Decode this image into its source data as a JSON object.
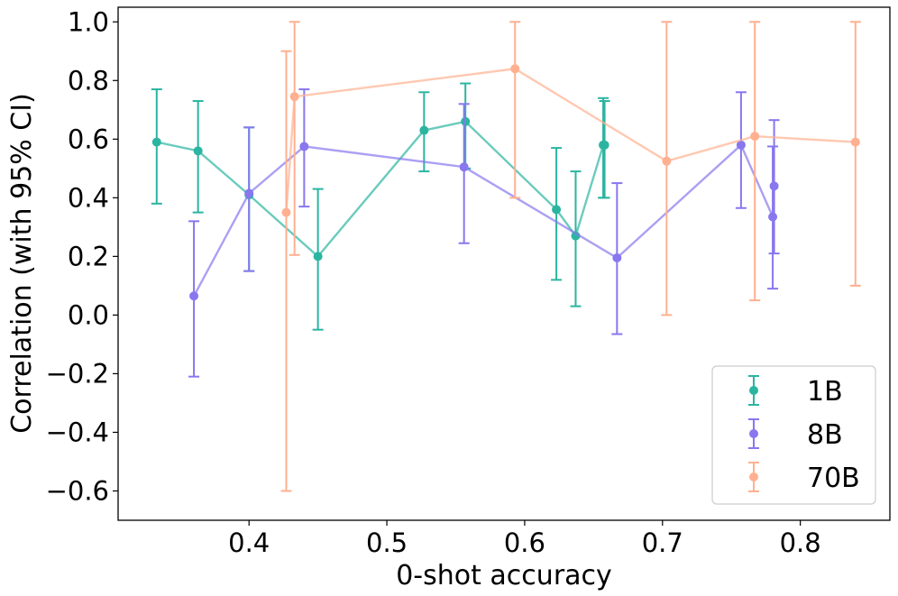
{
  "chart_data": {
    "type": "line",
    "title": "",
    "xlabel": "0-shot accuracy",
    "ylabel": "Correlation (with 95% CI)",
    "xlim": [
      0.305,
      0.865
    ],
    "ylim": [
      -0.7,
      1.05
    ],
    "xticks": [
      0.4,
      0.5,
      0.6,
      0.7,
      0.8
    ],
    "xtick_labels": [
      "0.4",
      "0.5",
      "0.6",
      "0.7",
      "0.8"
    ],
    "yticks": [
      -0.6,
      -0.4,
      -0.2,
      0.0,
      0.2,
      0.4,
      0.6,
      0.8,
      1.0
    ],
    "ytick_labels": [
      "−0.6",
      "−0.4",
      "−0.2",
      "0.0",
      "0.2",
      "0.4",
      "0.6",
      "0.8",
      "1.0"
    ],
    "grid": false,
    "legend_position": "bottom-right",
    "series": [
      {
        "name": "1B",
        "color": "#2bb5a1",
        "points": [
          {
            "x": 0.333,
            "y": 0.59,
            "lo": 0.38,
            "hi": 0.77
          },
          {
            "x": 0.363,
            "y": 0.56,
            "lo": 0.35,
            "hi": 0.73
          },
          {
            "x": 0.4,
            "y": 0.41,
            "lo": 0.15,
            "hi": 0.64
          },
          {
            "x": 0.45,
            "y": 0.2,
            "lo": -0.05,
            "hi": 0.43
          },
          {
            "x": 0.527,
            "y": 0.63,
            "lo": 0.49,
            "hi": 0.76
          },
          {
            "x": 0.557,
            "y": 0.66,
            "lo": 0.5,
            "hi": 0.79
          },
          {
            "x": 0.623,
            "y": 0.36,
            "lo": 0.12,
            "hi": 0.57
          },
          {
            "x": 0.637,
            "y": 0.27,
            "lo": 0.03,
            "hi": 0.49
          },
          {
            "x": 0.657,
            "y": 0.58,
            "lo": 0.4,
            "hi": 0.74
          },
          {
            "x": 0.658,
            "y": 0.58,
            "lo": 0.4,
            "hi": 0.73
          }
        ]
      },
      {
        "name": "8B",
        "color": "#8877ee",
        "points": [
          {
            "x": 0.36,
            "y": 0.065,
            "lo": -0.21,
            "hi": 0.32
          },
          {
            "x": 0.4,
            "y": 0.415,
            "lo": 0.15,
            "hi": 0.64
          },
          {
            "x": 0.44,
            "y": 0.575,
            "lo": 0.37,
            "hi": 0.77
          },
          {
            "x": 0.556,
            "y": 0.505,
            "lo": 0.245,
            "hi": 0.72
          },
          {
            "x": 0.667,
            "y": 0.195,
            "lo": -0.065,
            "hi": 0.45
          },
          {
            "x": 0.757,
            "y": 0.58,
            "lo": 0.365,
            "hi": 0.76
          },
          {
            "x": 0.78,
            "y": 0.335,
            "lo": 0.09,
            "hi": 0.575
          },
          {
            "x": 0.781,
            "y": 0.44,
            "lo": 0.21,
            "hi": 0.665
          }
        ]
      },
      {
        "name": "70B",
        "color": "#ffb090",
        "points": [
          {
            "x": 0.427,
            "y": 0.35,
            "lo": -0.6,
            "hi": 0.9
          },
          {
            "x": 0.433,
            "y": 0.745,
            "lo": 0.205,
            "hi": 1.0
          },
          {
            "x": 0.593,
            "y": 0.84,
            "lo": 0.4,
            "hi": 1.0
          },
          {
            "x": 0.703,
            "y": 0.525,
            "lo": 0.0,
            "hi": 1.0
          },
          {
            "x": 0.767,
            "y": 0.61,
            "lo": 0.05,
            "hi": 1.0
          },
          {
            "x": 0.84,
            "y": 0.59,
            "lo": 0.1,
            "hi": 1.0
          }
        ]
      }
    ]
  }
}
